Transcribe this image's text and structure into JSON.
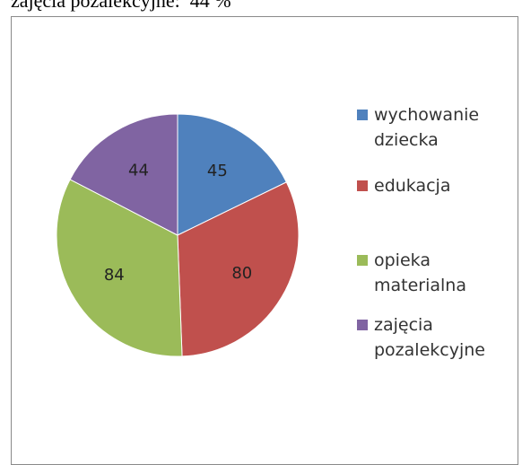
{
  "header_text": "zajęcia pozalekcyjne:  44 %",
  "chart_data": {
    "type": "pie",
    "categories": [
      "wychowanie dziecka",
      "edukacja",
      "opieka materialna",
      "zajęcia pozalekcyjne"
    ],
    "values": [
      45,
      80,
      84,
      44
    ],
    "colors": [
      "#4f81bd",
      "#c0504d",
      "#9bbb59",
      "#8064a2"
    ],
    "legend": "right"
  }
}
